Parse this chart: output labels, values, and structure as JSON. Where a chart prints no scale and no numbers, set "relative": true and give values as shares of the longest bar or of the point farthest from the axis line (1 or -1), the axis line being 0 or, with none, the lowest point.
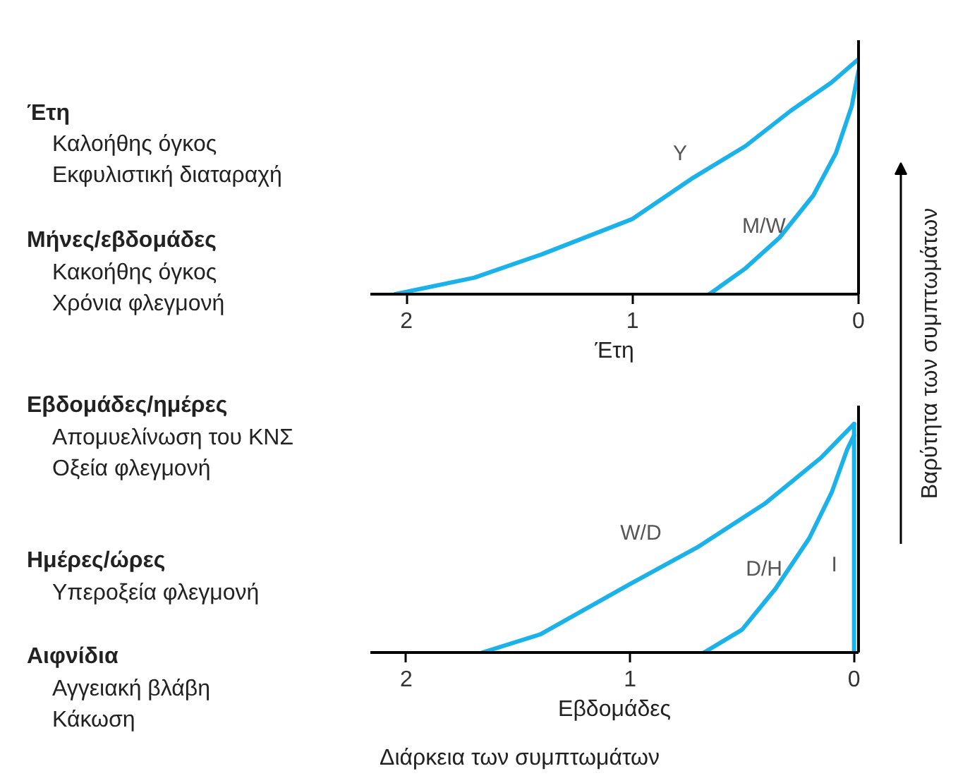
{
  "chart_data": [
    {
      "type": "line",
      "xlabel": "Έτη",
      "ylabel": "Βαρύτητα των συμπτωμάτων",
      "xlim": [
        2.16,
        0
      ],
      "xticks": [
        2,
        1,
        0
      ],
      "relative": true,
      "tick_labels": "x",
      "annotations": [
        "Έτη",
        "Καλοήθης όγκος",
        "Εκφυλιστική διαταραχή",
        "Μήνες/εβδομάδες",
        "Κακοήθης όγκος",
        "Χρόνια φλεγμονή"
      ],
      "series": [
        {
          "name": "Y",
          "color": "#1ab2e8",
          "x": [
            2.05,
            1.7,
            1.4,
            1.0,
            0.74,
            0.5,
            0.3,
            0.12,
            0
          ],
          "values": [
            0,
            0.07,
            0.17,
            0.32,
            0.49,
            0.63,
            0.78,
            0.9,
            1
          ]
        },
        {
          "name": "M/W",
          "color": "#1ab2e8",
          "x": [
            0.66,
            0.5,
            0.35,
            0.2,
            0.1,
            0.03,
            0
          ],
          "values": [
            0,
            0.11,
            0.24,
            0.42,
            0.6,
            0.8,
            0.95
          ]
        }
      ]
    },
    {
      "type": "line",
      "xlabel": "Εβδομάδες",
      "xlim": [
        2.16,
        -0.02
      ],
      "xticks": [
        2,
        1,
        0
      ],
      "relative": true,
      "tick_labels": "x",
      "annotations": [
        "Εβδομάδες/ημέρες",
        "Απομυελίνωση του ΚΝΣ",
        "Οξεία φλεγμονή",
        "Ημέρες/ώρες",
        "Υπεροξεία φλεγμονή",
        "Αιφνίδια",
        "Αγγειακή βλάβη",
        "Κάκωση",
        "Διάρκεια των συμπτωμάτων"
      ],
      "series": [
        {
          "name": "W/D",
          "color": "#1ab2e8",
          "x": [
            1.66,
            1.4,
            1.0,
            0.7,
            0.4,
            0.15,
            0
          ],
          "values": [
            0,
            0.08,
            0.3,
            0.46,
            0.65,
            0.85,
            1
          ]
        },
        {
          "name": "D/H",
          "color": "#1ab2e8",
          "x": [
            0.67,
            0.5,
            0.35,
            0.2,
            0.1,
            0.03,
            0
          ],
          "values": [
            0,
            0.1,
            0.28,
            0.5,
            0.7,
            0.89,
            0.95
          ]
        },
        {
          "name": "I",
          "color": "#1ab2e8",
          "x": [
            0,
            0
          ],
          "values": [
            0,
            1
          ]
        }
      ]
    }
  ]
}
